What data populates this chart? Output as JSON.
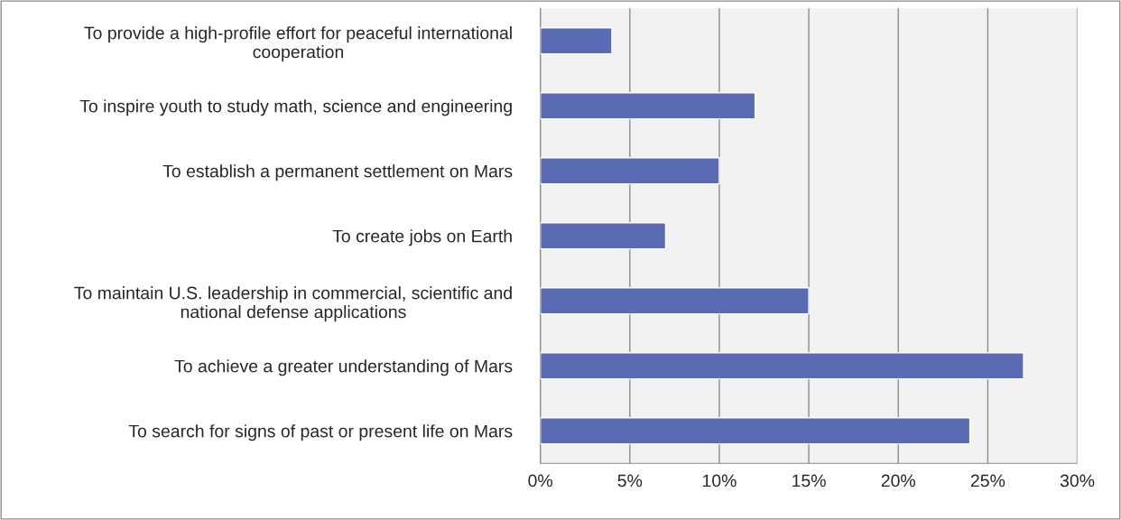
{
  "chart_data": {
    "type": "bar",
    "orientation": "horizontal",
    "categories": [
      "To provide a high-profile effort for peaceful international\ncooperation",
      "To inspire youth to study math, science and engineering",
      "To establish a permanent settlement on Mars",
      "To create jobs on Earth",
      "To maintain U.S. leadership in commercial, scientific and\nnational defense applications",
      "To achieve a greater understanding of Mars",
      "To search for signs of past or present life on Mars"
    ],
    "values": [
      4,
      12,
      10,
      7,
      15,
      27,
      24
    ],
    "color": "#5b6bb3",
    "xlim": [
      0,
      30
    ],
    "xticks": [
      {
        "value": 0,
        "label": "0%"
      },
      {
        "value": 5,
        "label": "5%"
      },
      {
        "value": 10,
        "label": "10%"
      },
      {
        "value": 15,
        "label": "15%"
      },
      {
        "value": 20,
        "label": "20%"
      },
      {
        "value": 25,
        "label": "25%"
      },
      {
        "value": 30,
        "label": "30%"
      }
    ],
    "grid": "x",
    "legend": false
  }
}
